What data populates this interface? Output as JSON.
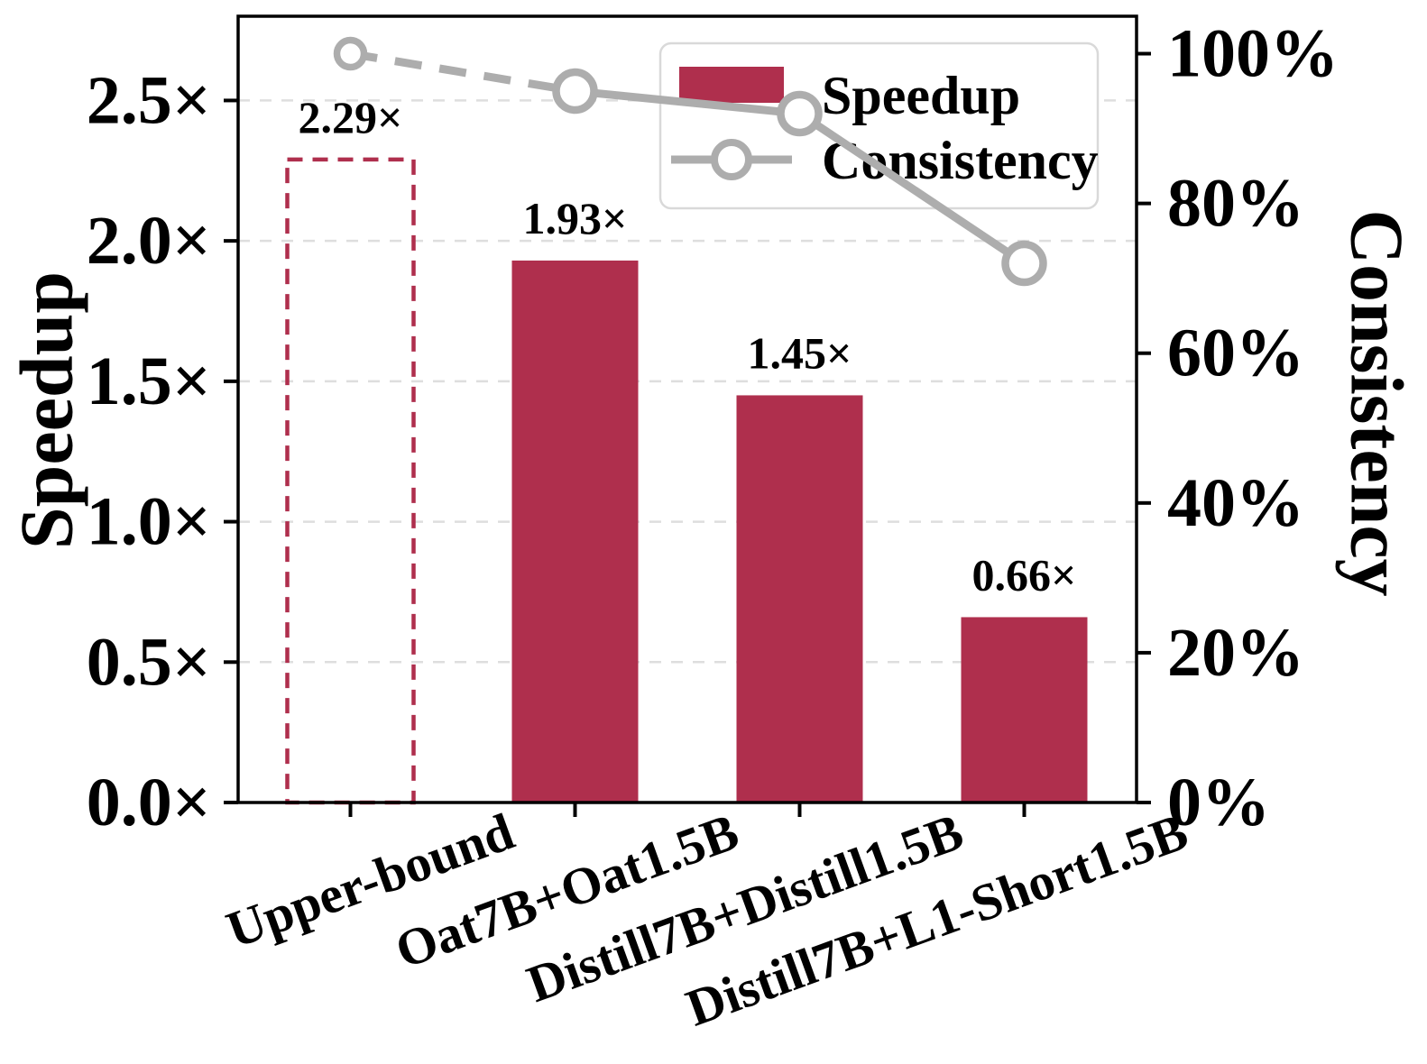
{
  "page": {
    "background": "#ffffff"
  },
  "chart_data": {
    "type": "bar+line-combo",
    "title": "",
    "categories": [
      "Upper-bound",
      "Oat7B+Oat1.5B",
      "Distill7B+Distill1.5B",
      "Distill7B+L1-Short1.5B"
    ],
    "x_tick_rotation_deg": 20,
    "series": [
      {
        "name": "Speedup",
        "type": "bar",
        "axis": "left",
        "color": "#AF2F4D",
        "values": [
          2.29,
          1.93,
          1.45,
          0.66
        ],
        "value_labels": [
          "2.29×",
          "1.93×",
          "1.45×",
          "0.66×"
        ],
        "bar_styles": [
          "dashed-outline",
          "solid",
          "solid",
          "solid"
        ]
      },
      {
        "name": "Consistency",
        "type": "line",
        "axis": "right",
        "color": "#ADADAD",
        "values_percent": [
          100,
          95,
          92,
          72
        ],
        "marker": "open-circle",
        "segment_styles": [
          "dashed",
          "solid",
          "solid"
        ]
      }
    ],
    "left_axis": {
      "label": "Speedup",
      "tick_labels": [
        "0.0×",
        "0.5×",
        "1.0×",
        "1.5×",
        "2.0×",
        "2.5×"
      ],
      "tick_values": [
        0,
        0.5,
        1.0,
        1.5,
        2.0,
        2.5
      ],
      "ylim": [
        0,
        2.8
      ]
    },
    "right_axis": {
      "label": "Consistency",
      "tick_labels": [
        "0%",
        "20%",
        "40%",
        "60%",
        "80%",
        "100%"
      ],
      "tick_values": [
        0,
        20,
        40,
        60,
        80,
        100
      ],
      "ylim": [
        0,
        105
      ]
    },
    "grid": {
      "axis": "left",
      "style": "dashed",
      "color": "#DEDEDE",
      "on": true
    },
    "legend": {
      "entries": [
        "Speedup",
        "Consistency"
      ],
      "position": "upper right inside"
    },
    "frame_color": "#000000"
  }
}
